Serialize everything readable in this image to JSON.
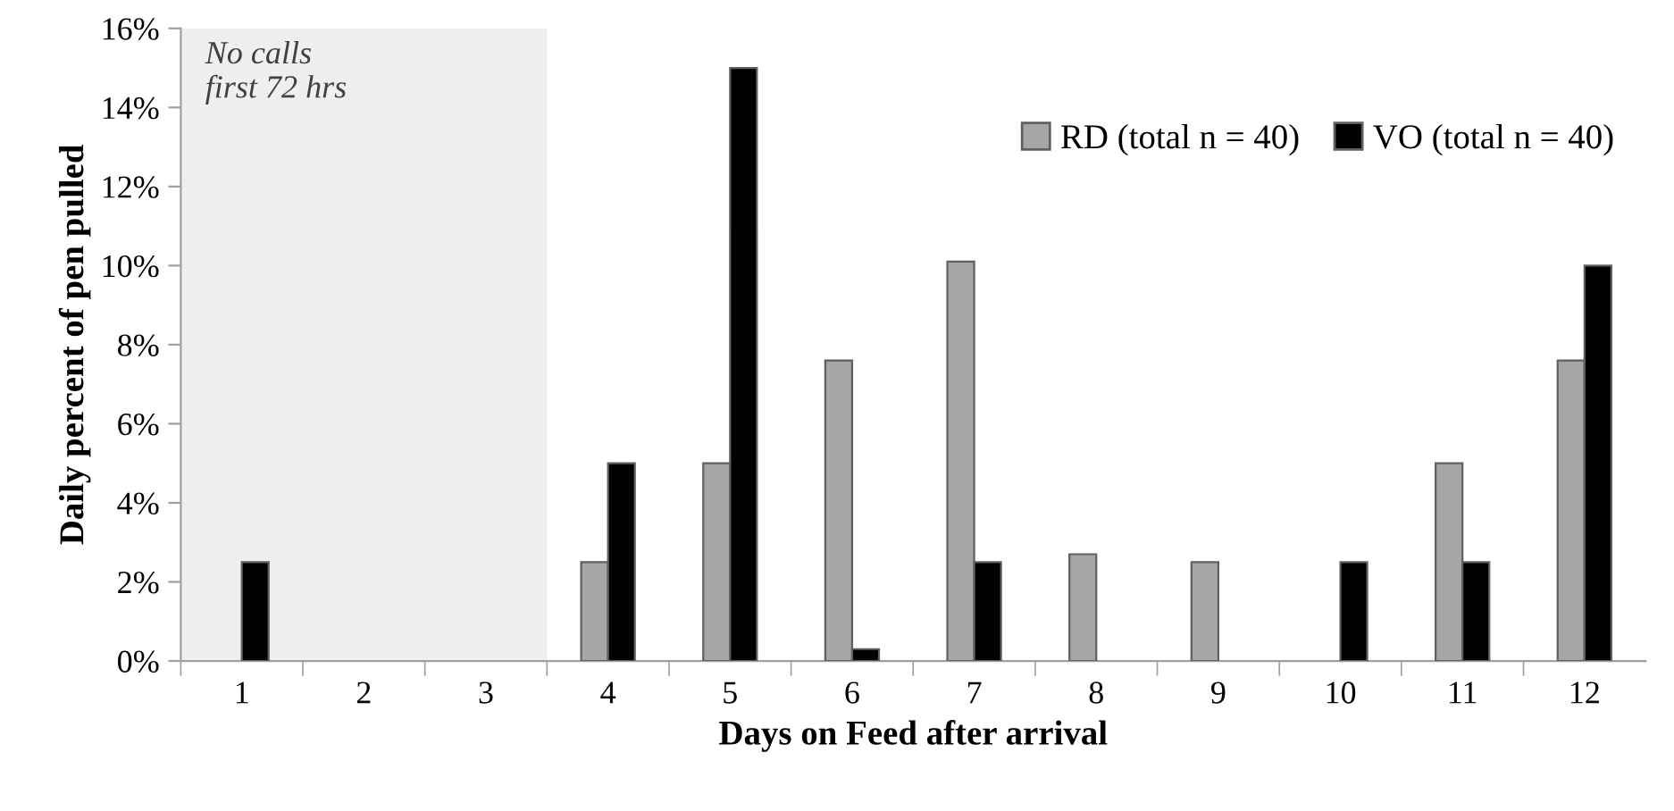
{
  "chart_data": {
    "type": "bar",
    "xlabel": "Days on Feed after arrival",
    "ylabel": "Daily percent of pen pulled",
    "categories": [
      "1",
      "2",
      "3",
      "4",
      "5",
      "6",
      "7",
      "8",
      "9",
      "10",
      "11",
      "12"
    ],
    "series": [
      {
        "name": "RD (total n = 40)",
        "color": "#a6a6a6",
        "values": [
          0,
          0,
          0,
          2.5,
          5.0,
          7.6,
          10.1,
          2.7,
          2.5,
          0,
          5.0,
          7.6
        ]
      },
      {
        "name": "VO (total n = 40)",
        "color": "#000000",
        "values": [
          2.5,
          0,
          0,
          5.0,
          15.0,
          0.3,
          2.5,
          0,
          0,
          2.5,
          2.5,
          10.0
        ]
      }
    ],
    "ylim": [
      0,
      16
    ],
    "yticks": [
      {
        "value": 0,
        "label": "0%"
      },
      {
        "value": 2,
        "label": "2%"
      },
      {
        "value": 4,
        "label": "4%"
      },
      {
        "value": 6,
        "label": "6%"
      },
      {
        "value": 8,
        "label": "8%"
      },
      {
        "value": 10,
        "label": "10%"
      },
      {
        "value": 12,
        "label": "12%"
      },
      {
        "value": 14,
        "label": "14%"
      },
      {
        "value": 16,
        "label": "16%"
      }
    ],
    "bands": [
      {
        "axis": "x",
        "from": "1",
        "to": "3",
        "label": "No calls\nfirst 72 hrs",
        "color": "#efefef"
      }
    ],
    "legend": "top right",
    "grid": false
  }
}
